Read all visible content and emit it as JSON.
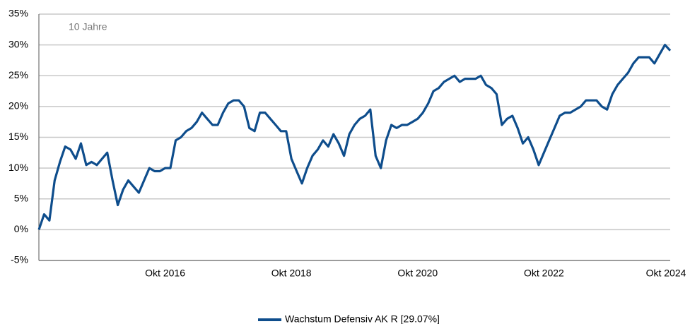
{
  "chart_data": {
    "type": "line",
    "annotation": "10 Jahre",
    "categories": [
      null,
      null,
      null,
      null,
      null,
      null,
      null,
      null,
      null,
      null,
      null,
      null,
      null,
      null,
      null,
      null,
      null,
      null,
      null,
      null,
      null,
      null,
      null,
      null,
      "Okt 2016",
      null,
      null,
      null,
      null,
      null,
      null,
      null,
      null,
      null,
      null,
      null,
      null,
      null,
      null,
      null,
      null,
      null,
      null,
      null,
      null,
      null,
      null,
      null,
      "Okt 2018",
      null,
      null,
      null,
      null,
      null,
      null,
      null,
      null,
      null,
      null,
      null,
      null,
      null,
      null,
      null,
      null,
      null,
      null,
      null,
      null,
      null,
      null,
      null,
      "Okt 2020",
      null,
      null,
      null,
      null,
      null,
      null,
      null,
      null,
      null,
      null,
      null,
      null,
      null,
      null,
      null,
      null,
      null,
      null,
      null,
      null,
      null,
      null,
      null,
      "Okt 2022",
      null,
      null,
      null,
      null,
      null,
      null,
      null,
      null,
      null,
      null,
      null,
      null,
      null,
      null,
      null,
      null,
      null,
      null,
      null,
      null,
      null,
      null,
      null,
      "Okt 2024"
    ],
    "series": [
      {
        "name": "Wachstum Defensiv AK R [29.07%]",
        "color": "#0e4d8c",
        "values": [
          0,
          2.5,
          1.5,
          8,
          11,
          13.5,
          13,
          11.5,
          14,
          10.5,
          11,
          10.5,
          11.5,
          12.5,
          8,
          4,
          6.5,
          8,
          7,
          6,
          8,
          10,
          9.5,
          9.5,
          10,
          10,
          14.5,
          15,
          16,
          16.5,
          17.5,
          19,
          18,
          17,
          17,
          19,
          20.5,
          21,
          21,
          20,
          16.5,
          16,
          19,
          19,
          18,
          17,
          16,
          16,
          11.5,
          9.5,
          7.5,
          10,
          12,
          13,
          14.5,
          13.5,
          15.5,
          14,
          12,
          15.5,
          17,
          18,
          18.5,
          19.5,
          12,
          10,
          14.5,
          17,
          16.5,
          17,
          17,
          17.5,
          18,
          19,
          20.5,
          22.5,
          23,
          24,
          24.5,
          25,
          24,
          24.5,
          24.5,
          24.5,
          25,
          23.5,
          23,
          22,
          17,
          18,
          18.5,
          16.5,
          14,
          15,
          13,
          10.5,
          12.5,
          14.5,
          16.5,
          18.5,
          19,
          19,
          19.5,
          20,
          21,
          21,
          21,
          20,
          19.5,
          22,
          23.5,
          24.5,
          25.5,
          27,
          28,
          28,
          28,
          27,
          28.5,
          30,
          29.07
        ]
      }
    ],
    "ylim": [
      -5,
      35
    ],
    "yticks": [
      {
        "value": -5,
        "label": "-5%"
      },
      {
        "value": 0,
        "label": "0%"
      },
      {
        "value": 5,
        "label": "5%"
      },
      {
        "value": 10,
        "label": "10%"
      },
      {
        "value": 15,
        "label": "15%"
      },
      {
        "value": 20,
        "label": "20%"
      },
      {
        "value": 25,
        "label": "25%"
      },
      {
        "value": 30,
        "label": "30%"
      },
      {
        "value": 35,
        "label": "35%"
      }
    ],
    "grid": true
  }
}
